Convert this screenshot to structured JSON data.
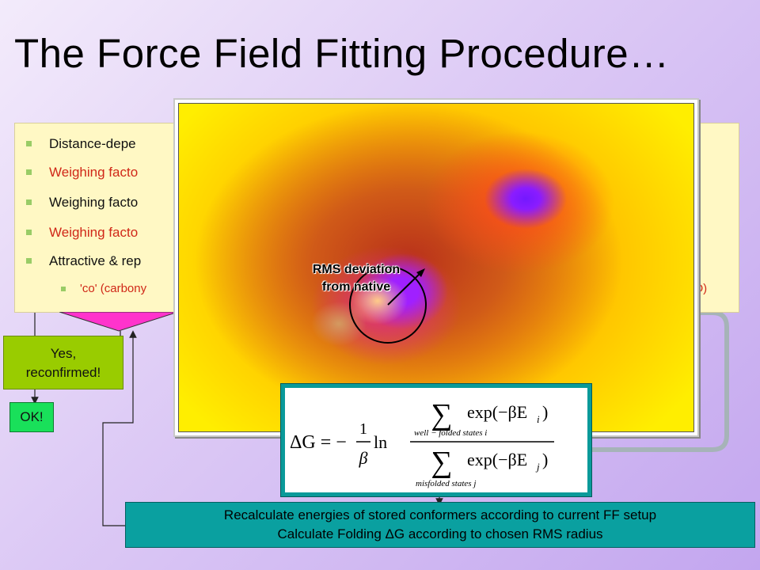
{
  "title": "The Force Field Fitting Procedure…",
  "bullets": [
    {
      "text": "Distance-depe",
      "color": "black"
    },
    {
      "text": "Weighing facto",
      "color": "red"
    },
    {
      "text": "Weighing facto",
      "color": "black"
    },
    {
      "text": "Weighing facto",
      "color": "red"
    },
    {
      "text": "Attractive & rep",
      "color": "black"
    }
  ],
  "sub_bullet": {
    "left": "'co' (carbony",
    "right": "l O)"
  },
  "yes_box": {
    "line1": "Yes,",
    "line2": "reconfirmed!"
  },
  "ok_box": {
    "label": "OK!"
  },
  "energy_plot": {
    "label_line1": "RMS deviation",
    "label_line2": "from native"
  },
  "formula": {
    "lhs": "ΔG = −",
    "frac_num": "1",
    "frac_den": "β",
    "ln": "ln",
    "numerator_sub": "well − folded states i",
    "numerator_term": "exp(−βE",
    "numerator_index": "i",
    "denominator_sub": "misfolded states j",
    "denominator_term": "exp(−βE",
    "denominator_index": "j"
  },
  "recalc": {
    "line1": "Recalculate energies of stored conformers according to current FF setup",
    "line2": "Calculate Folding ΔG according to chosen RMS radius"
  },
  "colors": {
    "panel_bg": "#fff8c4",
    "red_text": "#d02818",
    "yes_bg": "#99cc00",
    "ok_bg": "#19e05a",
    "teal": "#0aa0a0",
    "pink": "#ff33cc"
  }
}
